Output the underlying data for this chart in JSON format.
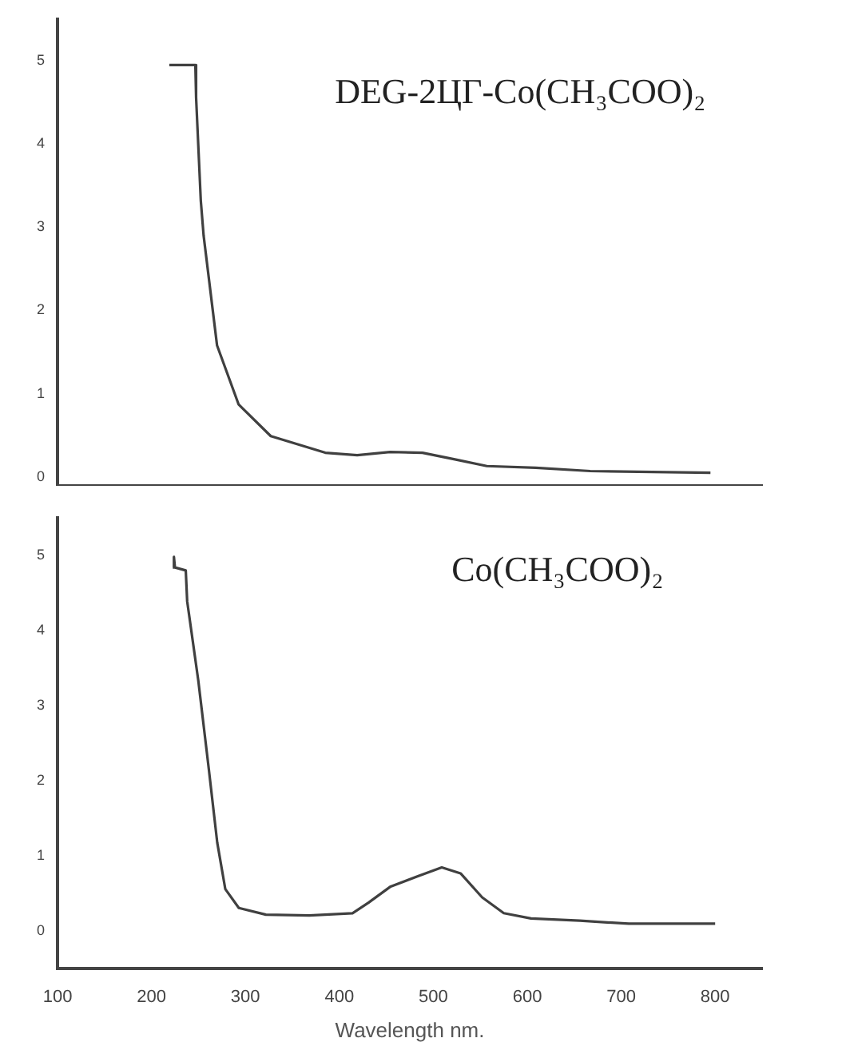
{
  "chart_data": [
    {
      "type": "line",
      "annotations": [
        "DEG-2ЦГ-Co(CH₃COO)₂"
      ],
      "tick_labels": "y",
      "grid": false,
      "legend": false,
      "marker": "none",
      "line_style": "solid",
      "xlim": [
        100,
        850
      ],
      "ylim": [
        -0.1,
        5.5
      ],
      "yticks": [
        0,
        1,
        2,
        3,
        4,
        5
      ],
      "series": [
        {
          "color": "#404040",
          "x": [
            219,
            246.7,
            247.5,
            252.5,
            255.5,
            269.8,
            292.8,
            327,
            385,
            419,
            454,
            488.5,
            523,
            557,
            609,
            667,
            795
          ],
          "values": [
            4.95,
            4.95,
            4.56,
            3.32,
            2.9,
            1.58,
            0.87,
            0.49,
            0.29,
            0.26,
            0.3,
            0.29,
            0.21,
            0.13,
            0.11,
            0.07,
            0.05
          ]
        }
      ]
    },
    {
      "type": "line",
      "annotations": [
        "Co(CH₃COO)₂"
      ],
      "xlabel": "Wavelength nm.",
      "grid": false,
      "legend": false,
      "marker": "none",
      "line_style": "solid",
      "xlim": [
        100,
        850
      ],
      "ylim": [
        -0.5,
        5.5
      ],
      "xticks": [
        100,
        200,
        300,
        400,
        500,
        600,
        700,
        800
      ],
      "yticks": [
        0,
        1,
        2,
        3,
        4,
        5
      ],
      "series": [
        {
          "color": "#404040",
          "x": [
            222.7,
            223.9,
            225,
            236.5,
            238,
            249.8,
            261,
            270,
            278.6,
            293,
            321.8,
            368,
            414,
            431,
            454,
            483,
            509,
            529,
            552,
            575,
            604,
            656,
            708,
            800
          ],
          "values": [
            4.84,
            4.98,
            4.84,
            4.8,
            4.39,
            3.34,
            2.16,
            1.18,
            0.56,
            0.31,
            0.22,
            0.21,
            0.24,
            0.38,
            0.59,
            0.73,
            0.85,
            0.77,
            0.45,
            0.24,
            0.17,
            0.14,
            0.1,
            0.1
          ]
        }
      ]
    }
  ]
}
